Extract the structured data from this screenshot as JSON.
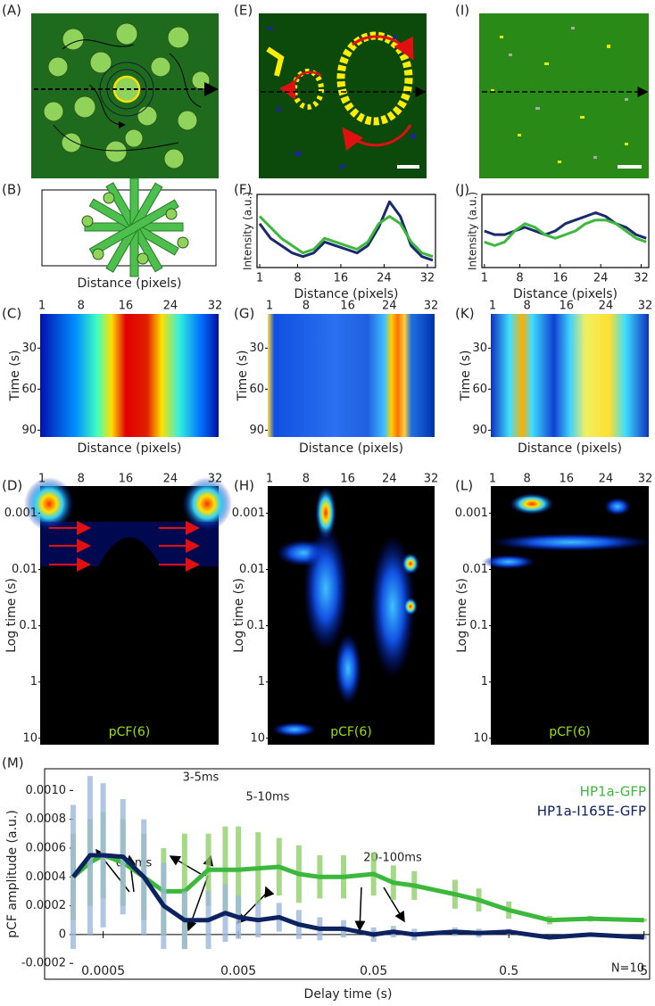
{
  "panel_labels": [
    "(A)",
    "(B)",
    "(C)",
    "(D)",
    "(E)",
    "(F)",
    "(G)",
    "(H)",
    "(I)",
    "(J)",
    "(K)",
    "(L)",
    "(M)"
  ],
  "maps": [
    {
      "x_label": "Distance (pixels)",
      "y_label": "Time (s)",
      "xticks": [
        1,
        8,
        16,
        24,
        32
      ],
      "yticks": [
        30,
        60,
        90
      ],
      "xlim": [
        1,
        32
      ],
      "ylim": [
        5,
        95
      ]
    },
    {
      "y_label": "Time (s)",
      "xticks": [
        1,
        8,
        16,
        24,
        32
      ],
      "yticks": [
        30,
        60,
        90
      ],
      "xlim": [
        1,
        32
      ],
      "ylim": [
        5,
        95
      ]
    },
    {
      "y_label": "Time (s)",
      "xticks": [
        1,
        8,
        16,
        24,
        32
      ],
      "yticks": [
        30,
        60,
        90
      ],
      "xlim": [
        1,
        32
      ],
      "ylim": [
        5,
        95
      ]
    }
  ],
  "correlation_maps": [
    {
      "x_label": "Distance (pixels)",
      "y_label": "Log time (s)",
      "annotation": "pCF(6)",
      "xticks": [
        1,
        8,
        16,
        24,
        32
      ],
      "yticks": [
        0.001,
        0.01,
        0.1,
        1,
        10
      ],
      "xlim": [
        1,
        32
      ],
      "ylim": [
        0.00033,
        13
      ],
      "log_y": true
    },
    {
      "x_label": "Distance (pixels)",
      "y_label": "Log time (s)",
      "annotation": "pCF(6)",
      "xticks": [
        1,
        8,
        16,
        24,
        32
      ],
      "yticks": [
        0.001,
        0.01,
        0.1,
        1,
        10
      ],
      "xlim": [
        1,
        32
      ],
      "ylim": [
        0.00033,
        13
      ],
      "log_y": true
    },
    {
      "x_label": "Distance (pixels)",
      "y_label": "Log time (s)",
      "annotation": "pCF(6)",
      "xticks": [
        1,
        8,
        16,
        24,
        32
      ],
      "yticks": [
        0.001,
        0.01,
        0.1,
        1,
        10
      ],
      "xlim": [
        1,
        32
      ],
      "ylim": [
        0.00033,
        13
      ],
      "log_y": true
    }
  ],
  "chart_data": [
    {
      "type": "line",
      "x_label": "Distance (pixels)",
      "y_label": "Intensity (a.u.)",
      "x": [
        1,
        3,
        5,
        7,
        9,
        11,
        13,
        15,
        17,
        19,
        21,
        23,
        25,
        27,
        29,
        31,
        33
      ],
      "xlim": [
        0.5,
        33.5
      ],
      "xticks": [
        1,
        8,
        16,
        24,
        32
      ],
      "ylim": [
        0,
        1
      ],
      "series": [
        {
          "color": "#1a2a6c",
          "values": [
            0.6,
            0.4,
            0.3,
            0.2,
            0.15,
            0.2,
            0.35,
            0.3,
            0.25,
            0.2,
            0.3,
            0.55,
            0.9,
            0.7,
            0.3,
            0.15,
            0.1
          ]
        },
        {
          "color": "#3cb83c",
          "values": [
            0.7,
            0.55,
            0.4,
            0.3,
            0.2,
            0.25,
            0.4,
            0.35,
            0.3,
            0.25,
            0.35,
            0.6,
            0.7,
            0.6,
            0.35,
            0.2,
            0.15
          ]
        }
      ]
    },
    {
      "type": "line",
      "x_label": "Distance (pixels)",
      "y_label": "Intensity (a.u.)",
      "x": [
        1,
        3,
        5,
        7,
        9,
        11,
        13,
        15,
        17,
        19,
        21,
        23,
        25,
        27,
        29,
        31,
        33
      ],
      "xlim": [
        0.5,
        33.5
      ],
      "xticks": [
        1,
        8,
        16,
        24,
        32
      ],
      "ylim": [
        0,
        1
      ],
      "series": [
        {
          "color": "#1a2a6c",
          "values": [
            0.5,
            0.45,
            0.45,
            0.5,
            0.55,
            0.5,
            0.45,
            0.5,
            0.6,
            0.65,
            0.7,
            0.75,
            0.7,
            0.6,
            0.55,
            0.45,
            0.4
          ]
        },
        {
          "color": "#3cb83c",
          "values": [
            0.35,
            0.3,
            0.35,
            0.5,
            0.6,
            0.55,
            0.45,
            0.4,
            0.45,
            0.5,
            0.6,
            0.65,
            0.65,
            0.6,
            0.5,
            0.4,
            0.35
          ]
        }
      ]
    },
    {
      "type": "line",
      "x_label": "Delay time (s)",
      "y_label": "pCF amplitude (a.u.)",
      "log_x": true,
      "annotations": [
        "0-1ms",
        "3-5ms",
        "5-10ms",
        "20-100ms",
        "N=10"
      ],
      "x": [
        0.0003,
        0.0004,
        0.0005,
        0.0007,
        0.001,
        0.0014,
        0.002,
        0.003,
        0.004,
        0.005,
        0.007,
        0.01,
        0.014,
        0.02,
        0.03,
        0.05,
        0.07,
        0.1,
        0.2,
        0.3,
        0.5,
        1,
        2,
        5
      ],
      "xlim": [
        0.0003,
        5.5
      ],
      "xticks": [
        0.0005,
        0.005,
        0.05,
        0.5,
        5
      ],
      "ylim": [
        -0.00031,
        0.00107
      ],
      "yticks": [
        -0.0002,
        0,
        0.0002,
        0.0004,
        0.0006,
        0.0008,
        {
          "value": 0.001,
          "label": "0.0010"
        }
      ],
      "series": [
        {
          "name": "HP1a-GFP",
          "color": "#3cb83c",
          "error_color": "#8fd06a",
          "values": [
            0.0004,
            0.0005,
            0.00055,
            0.0005,
            0.0004,
            0.0003,
            0.0003,
            0.00045,
            0.00045,
            0.00045,
            0.00046,
            0.00047,
            0.00042,
            0.0004,
            0.0004,
            0.00042,
            0.00036,
            0.00034,
            0.00028,
            0.00024,
            0.00017,
            0.0001,
            0.00011,
            0.0001
          ],
          "errors": [
            0.0003,
            0.0003,
            0.0003,
            0.0003,
            0.0003,
            0.0003,
            0.0004,
            0.00025,
            0.0003,
            0.0003,
            0.00025,
            0.0002,
            0.0002,
            0.00015,
            0.00015,
            0.00015,
            0.00012,
            0.0001,
            0.0001,
            8e-05,
            6e-05,
            3e-05,
            2e-05,
            1e-05
          ]
        },
        {
          "name": "HP1a-I165E-GFP",
          "color": "#0d2260",
          "error_color": "#9db8dc",
          "values": [
            0.0004,
            0.00055,
            0.00055,
            0.00054,
            0.0004,
            0.0002,
            0.0001,
            0.0001,
            0.00015,
            0.00012,
            0.0001,
            0.00012,
            7e-05,
            4e-05,
            4e-05,
            0,
            2e-05,
            0,
            2e-05,
            1e-05,
            2e-05,
            -2e-05,
            0,
            -2e-05
          ],
          "errors": [
            0.0005,
            0.00055,
            0.0005,
            0.0004,
            0.0004,
            0.0003,
            0.0002,
            0.0002,
            0.0002,
            0.00015,
            0.00012,
            0.0001,
            0.0001,
            8e-05,
            6e-05,
            5e-05,
            4e-05,
            4e-05,
            3e-05,
            3e-05,
            2e-05,
            1e-05,
            1e-05,
            1e-05
          ]
        }
      ]
    }
  ]
}
